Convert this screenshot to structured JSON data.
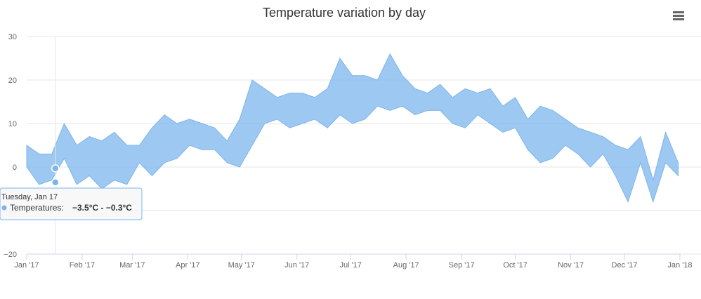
{
  "chart_data": {
    "type": "area",
    "subtype": "arearange",
    "title": "Temperature variation by day",
    "series": [
      {
        "name": "Temperatures",
        "unit": "°C",
        "color": "#7cb5ec",
        "sampling": "weekly approximation of daily range",
        "x": [
          "2017-01-01",
          "2017-01-08",
          "2017-01-15",
          "2017-01-22",
          "2017-01-29",
          "2017-02-05",
          "2017-02-12",
          "2017-02-19",
          "2017-02-26",
          "2017-03-05",
          "2017-03-12",
          "2017-03-19",
          "2017-03-26",
          "2017-04-02",
          "2017-04-09",
          "2017-04-16",
          "2017-04-23",
          "2017-04-30",
          "2017-05-07",
          "2017-05-14",
          "2017-05-21",
          "2017-05-28",
          "2017-06-04",
          "2017-06-11",
          "2017-06-18",
          "2017-06-25",
          "2017-07-02",
          "2017-07-09",
          "2017-07-16",
          "2017-07-23",
          "2017-07-30",
          "2017-08-06",
          "2017-08-13",
          "2017-08-20",
          "2017-08-27",
          "2017-09-03",
          "2017-09-10",
          "2017-09-17",
          "2017-09-24",
          "2017-10-01",
          "2017-10-08",
          "2017-10-15",
          "2017-10-22",
          "2017-10-29",
          "2017-11-05",
          "2017-11-12",
          "2017-11-19",
          "2017-11-26",
          "2017-12-03",
          "2017-12-10",
          "2017-12-17",
          "2017-12-24",
          "2017-12-31"
        ],
        "low": [
          0,
          -4,
          -3,
          2,
          -4,
          -2,
          -5,
          -3,
          -4,
          1,
          -2,
          1,
          2,
          5,
          4,
          4,
          1,
          0,
          5,
          10,
          11,
          9,
          10,
          11,
          9,
          12,
          10,
          11,
          14,
          13,
          14,
          12,
          13,
          13,
          10,
          9,
          12,
          10,
          8,
          9,
          4,
          1,
          2,
          5,
          3,
          0,
          3,
          -2,
          -8,
          1,
          -8,
          1,
          -2
        ],
        "high": [
          5,
          3,
          3,
          10,
          5,
          7,
          6,
          8,
          5,
          5,
          9,
          12,
          10,
          11,
          10,
          9,
          6,
          11,
          20,
          18,
          16,
          17,
          17,
          16,
          18,
          25,
          21,
          21,
          20,
          26,
          21,
          18,
          17,
          19,
          16,
          18,
          17,
          18,
          14,
          16,
          11,
          14,
          13,
          11,
          9,
          8,
          7,
          5,
          4,
          7,
          -3,
          8,
          1
        ]
      }
    ],
    "x_ticks": [
      "Jan '17",
      "Feb '17",
      "Mar '17",
      "Apr '17",
      "May '17",
      "Jun '17",
      "Jul '17",
      "Aug '17",
      "Sep '17",
      "Oct '17",
      "Nov '17",
      "Dec '17",
      "Jan '18"
    ],
    "y_ticks": [
      "−20",
      "−10",
      "0",
      "10",
      "20",
      "30"
    ],
    "ylim": [
      -20,
      30
    ],
    "xlim": [
      "2017-01-01",
      "2018-01-01"
    ],
    "grid": true,
    "legend": "none"
  },
  "tooltip": {
    "date": "Tuesday, Jan 17",
    "series_label": "Temperatures:",
    "low": -3.5,
    "high": -0.3,
    "value_text": "−3.5°C - −0.3°C",
    "x": "2017-01-17"
  },
  "menu": {
    "icon": "hamburger-menu-icon"
  }
}
